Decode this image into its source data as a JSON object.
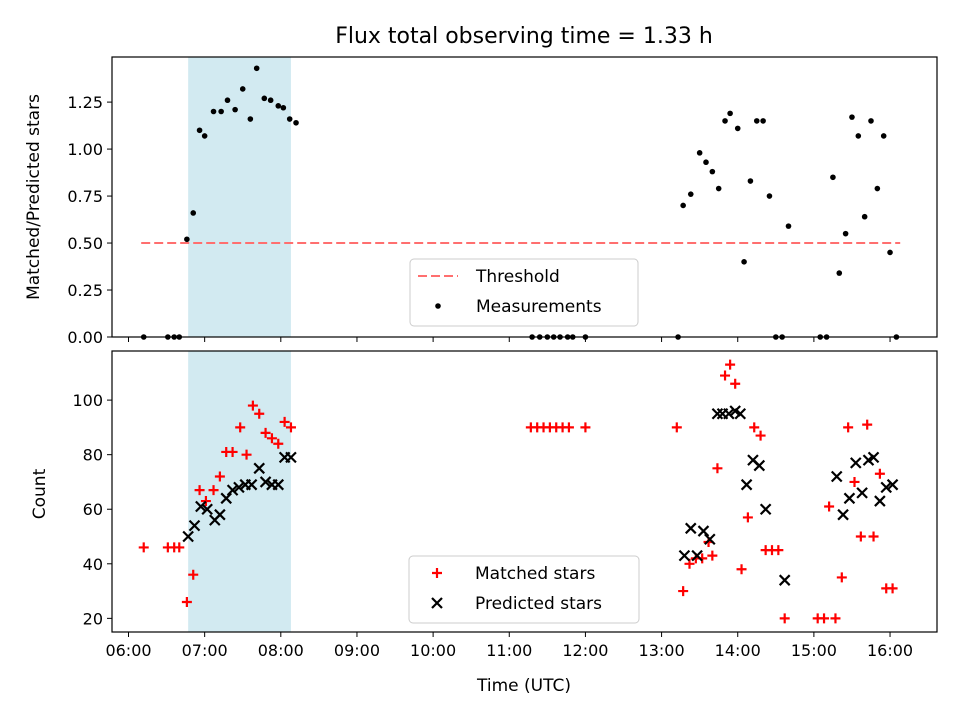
{
  "figure": {
    "title": "Flux total observing time = 1.33 h"
  },
  "chart_data": [
    {
      "type": "scatter",
      "panel": "top",
      "title": "Flux total observing time = 1.33 h",
      "xlabel": "",
      "ylabel": "Matched/Predicted stars",
      "ylim": [
        0,
        1.49
      ],
      "yticks": [
        "0.00",
        "0.25",
        "0.50",
        "0.75",
        "1.00",
        "1.25"
      ],
      "highlight_span": {
        "start": "06:47",
        "end": "08:08",
        "color": "#add8e6"
      },
      "threshold": {
        "name": "Threshold",
        "y": 0.5,
        "x_start": "06:10",
        "x_end": "16:08",
        "color": "#ff6f6f"
      },
      "series": [
        {
          "name": "Measurements",
          "color": "#000000",
          "points": [
            [
              "06:12",
              0
            ],
            [
              "06:31",
              0
            ],
            [
              "06:36",
              0
            ],
            [
              "06:40",
              0
            ],
            [
              "06:46",
              0.52
            ],
            [
              "06:51",
              0.66
            ],
            [
              "06:56",
              1.1
            ],
            [
              "07:00",
              1.07
            ],
            [
              "07:07",
              1.2
            ],
            [
              "07:13",
              1.2
            ],
            [
              "07:18",
              1.26
            ],
            [
              "07:24",
              1.21
            ],
            [
              "07:30",
              1.32
            ],
            [
              "07:36",
              1.16
            ],
            [
              "07:41",
              1.43
            ],
            [
              "07:47",
              1.27
            ],
            [
              "07:52",
              1.26
            ],
            [
              "07:58",
              1.23
            ],
            [
              "08:02",
              1.22
            ],
            [
              "08:07",
              1.16
            ],
            [
              "08:12",
              1.14
            ],
            [
              "11:18",
              0
            ],
            [
              "11:24",
              0
            ],
            [
              "11:30",
              0
            ],
            [
              "11:35",
              0
            ],
            [
              "11:40",
              0
            ],
            [
              "11:46",
              0
            ],
            [
              "11:50",
              0
            ],
            [
              "12:00",
              0
            ],
            [
              "13:13",
              0
            ],
            [
              "13:17",
              0.7
            ],
            [
              "13:23",
              0.76
            ],
            [
              "13:30",
              0.98
            ],
            [
              "13:35",
              0.93
            ],
            [
              "13:40",
              0.88
            ],
            [
              "13:45",
              0.79
            ],
            [
              "13:50",
              1.15
            ],
            [
              "13:54",
              1.19
            ],
            [
              "14:00",
              1.11
            ],
            [
              "14:05",
              0.4
            ],
            [
              "14:10",
              0.83
            ],
            [
              "14:15",
              1.15
            ],
            [
              "14:20",
              1.15
            ],
            [
              "14:25",
              0.75
            ],
            [
              "14:30",
              0
            ],
            [
              "14:35",
              0
            ],
            [
              "14:40",
              0.59
            ],
            [
              "15:05",
              0
            ],
            [
              "15:10",
              0
            ],
            [
              "15:15",
              0.85
            ],
            [
              "15:20",
              0.34
            ],
            [
              "15:25",
              0.55
            ],
            [
              "15:30",
              1.17
            ],
            [
              "15:35",
              1.07
            ],
            [
              "15:40",
              0.64
            ],
            [
              "15:45",
              1.15
            ],
            [
              "15:50",
              0.79
            ],
            [
              "15:55",
              1.07
            ],
            [
              "16:00",
              0.45
            ],
            [
              "16:05",
              0
            ]
          ]
        }
      ],
      "legend": {
        "placement": "lower-center",
        "entries": [
          "Threshold",
          "Measurements"
        ]
      }
    },
    {
      "type": "scatter",
      "panel": "bottom",
      "xlabel": "Time (UTC)",
      "ylabel": "Count",
      "ylim": [
        15,
        118
      ],
      "yticks": [
        "20",
        "40",
        "60",
        "80",
        "100"
      ],
      "xticks": [
        "06:00",
        "07:00",
        "08:00",
        "09:00",
        "10:00",
        "11:00",
        "12:00",
        "13:00",
        "14:00",
        "15:00",
        "16:00"
      ],
      "xlim": [
        "05:47",
        "16:37"
      ],
      "highlight_span": {
        "start": "06:47",
        "end": "08:08",
        "color": "#add8e6"
      },
      "series": [
        {
          "name": "Matched stars",
          "marker": "plus",
          "color": "#ff0000",
          "points": [
            [
              "06:12",
              46
            ],
            [
              "06:31",
              46
            ],
            [
              "06:36",
              46
            ],
            [
              "06:40",
              46
            ],
            [
              "06:46",
              26
            ],
            [
              "06:51",
              36
            ],
            [
              "06:56",
              67
            ],
            [
              "07:01",
              63
            ],
            [
              "07:07",
              67
            ],
            [
              "07:12",
              72
            ],
            [
              "07:17",
              81
            ],
            [
              "07:22",
              81
            ],
            [
              "07:28",
              90
            ],
            [
              "07:33",
              80
            ],
            [
              "07:38",
              98
            ],
            [
              "07:43",
              95
            ],
            [
              "07:48",
              88
            ],
            [
              "07:53",
              86
            ],
            [
              "07:58",
              84
            ],
            [
              "08:03",
              92
            ],
            [
              "08:08",
              90
            ],
            [
              "11:17",
              90
            ],
            [
              "11:22",
              90
            ],
            [
              "11:27",
              90
            ],
            [
              "11:32",
              90
            ],
            [
              "11:37",
              90
            ],
            [
              "11:42",
              90
            ],
            [
              "11:47",
              90
            ],
            [
              "12:00",
              90
            ],
            [
              "13:12",
              90
            ],
            [
              "13:17",
              30
            ],
            [
              "13:22",
              40
            ],
            [
              "13:27",
              42
            ],
            [
              "13:32",
              42
            ],
            [
              "13:37",
              48
            ],
            [
              "13:40",
              43
            ],
            [
              "13:44",
              75
            ],
            [
              "13:50",
              109
            ],
            [
              "13:54",
              113
            ],
            [
              "13:58",
              106
            ],
            [
              "14:03",
              38
            ],
            [
              "14:08",
              57
            ],
            [
              "14:13",
              90
            ],
            [
              "14:18",
              87
            ],
            [
              "14:22",
              45
            ],
            [
              "14:27",
              45
            ],
            [
              "14:32",
              45
            ],
            [
              "14:37",
              20
            ],
            [
              "15:03",
              20
            ],
            [
              "15:08",
              20
            ],
            [
              "15:12",
              61
            ],
            [
              "15:17",
              20
            ],
            [
              "15:22",
              35
            ],
            [
              "15:27",
              90
            ],
            [
              "15:32",
              70
            ],
            [
              "15:37",
              50
            ],
            [
              "15:42",
              91
            ],
            [
              "15:47",
              50
            ],
            [
              "15:52",
              73
            ],
            [
              "15:57",
              31
            ],
            [
              "16:02",
              31
            ]
          ]
        },
        {
          "name": "Predicted stars",
          "marker": "x",
          "color": "#000000",
          "points": [
            [
              "06:47",
              50
            ],
            [
              "06:52",
              54
            ],
            [
              "06:57",
              61
            ],
            [
              "07:02",
              60
            ],
            [
              "07:08",
              56
            ],
            [
              "07:12",
              58
            ],
            [
              "07:17",
              64
            ],
            [
              "07:22",
              67
            ],
            [
              "07:27",
              68
            ],
            [
              "07:32",
              69
            ],
            [
              "07:37",
              69
            ],
            [
              "07:43",
              75
            ],
            [
              "07:48",
              70
            ],
            [
              "07:53",
              69
            ],
            [
              "07:58",
              69
            ],
            [
              "08:03",
              79
            ],
            [
              "08:08",
              79
            ],
            [
              "13:18",
              43
            ],
            [
              "13:23",
              53
            ],
            [
              "13:28",
              43
            ],
            [
              "13:33",
              52
            ],
            [
              "13:38",
              49
            ],
            [
              "13:44",
              95
            ],
            [
              "13:48",
              95
            ],
            [
              "13:53",
              95
            ],
            [
              "13:58",
              96
            ],
            [
              "14:02",
              95
            ],
            [
              "14:07",
              69
            ],
            [
              "14:12",
              78
            ],
            [
              "14:17",
              76
            ],
            [
              "14:22",
              60
            ],
            [
              "14:37",
              34
            ],
            [
              "15:18",
              72
            ],
            [
              "15:23",
              58
            ],
            [
              "15:28",
              64
            ],
            [
              "15:33",
              77
            ],
            [
              "15:38",
              66
            ],
            [
              "15:43",
              78
            ],
            [
              "15:47",
              79
            ],
            [
              "15:52",
              63
            ],
            [
              "15:57",
              68
            ],
            [
              "16:02",
              69
            ]
          ]
        }
      ],
      "legend": {
        "placement": "lower-center",
        "entries": [
          "Matched stars",
          "Predicted stars"
        ]
      }
    }
  ]
}
